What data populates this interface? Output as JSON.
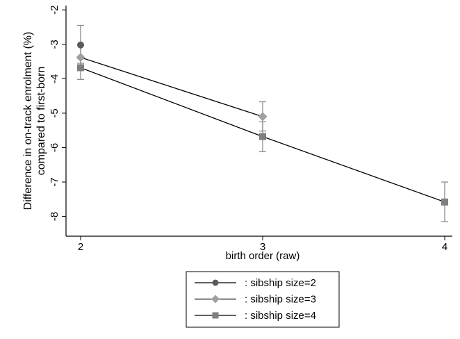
{
  "chart_data": {
    "type": "line",
    "xlabel": "birth order (raw)",
    "ylabel_lines": [
      "Difference in on-track enrolment (%)",
      "compared to first-born"
    ],
    "xlim": [
      2,
      4
    ],
    "ylim": [
      -8.2,
      -1.9
    ],
    "x_ticks": [
      2,
      3,
      4
    ],
    "x_tick_labels": [
      "2",
      "3",
      "4"
    ],
    "y_ticks": [
      -8,
      -7,
      -6,
      -5,
      -4,
      -3,
      -2
    ],
    "y_tick_labels": [
      "-8",
      "-7",
      "-6",
      "-5",
      "-4",
      "-3",
      "-2"
    ],
    "grid": false,
    "legend_position": "bottom",
    "series": [
      {
        "name": ": sibship size=2",
        "marker": "circle",
        "color": "#5a5a5a",
        "x": [
          2
        ],
        "y": [
          -3.02
        ],
        "ci_low": [
          -3.55
        ],
        "ci_high": [
          -2.45
        ]
      },
      {
        "name": ": sibship size=3",
        "marker": "diamond",
        "color": "#a0a0a0",
        "x": [
          2,
          3
        ],
        "y": [
          -3.38,
          -5.1
        ],
        "ci_low": [
          -3.75,
          -5.52
        ],
        "ci_high": [
          -3.0,
          -4.67
        ]
      },
      {
        "name": ": sibship size=4",
        "marker": "square",
        "color": "#7f7f7f",
        "x": [
          2,
          3,
          4
        ],
        "y": [
          -3.68,
          -5.68,
          -7.58
        ],
        "ci_low": [
          -4.02,
          -6.12,
          -8.15
        ],
        "ci_high": [
          -3.35,
          -5.25,
          -7.0
        ]
      }
    ]
  }
}
